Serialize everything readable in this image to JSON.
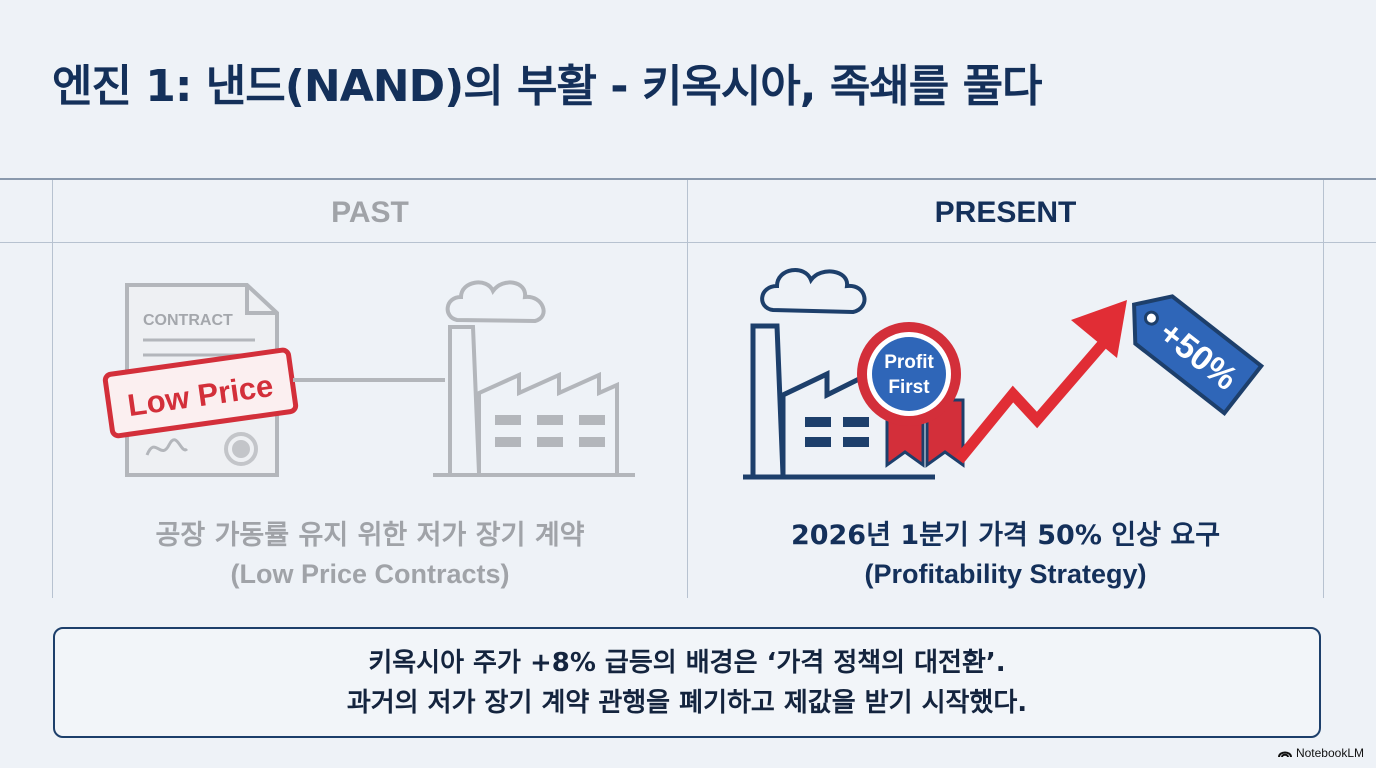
{
  "slide": {
    "title": "엔진 1: 낸드(NAND)의 부활 - 키옥시아, 족쇄를 풀다"
  },
  "columns": {
    "past": {
      "header": "PAST",
      "caption_line1": "공장 가동률 유지 위한 저가 장기 계약",
      "caption_line2": "(Low Price Contracts)",
      "illustration": {
        "document_label": "CONTRACT",
        "stamp_text": "Low Price",
        "icons": [
          "contract-document-icon",
          "seal-icon",
          "factory-icon",
          "smoke-icon"
        ]
      }
    },
    "present": {
      "header": "PRESENT",
      "caption_line1": "2026년 1분기 가격 50% 인상 요구",
      "caption_line2": "(Profitability Strategy)",
      "illustration": {
        "badge_line1": "Profit",
        "badge_line2": "First",
        "price_tag_text": "+50%",
        "icons": [
          "factory-icon",
          "ribbon-badge-icon",
          "rising-arrow-icon",
          "price-tag-icon"
        ]
      }
    }
  },
  "summary": {
    "line1": "키옥시아 주가 +8% 급등의 배경은 ‘가격 정책의 대전환’.",
    "line2": "과거의 저가 장기 계약 관행을 폐기하고 제값을 받기 시작했다."
  },
  "branding": {
    "label": "NotebookLM"
  },
  "colors": {
    "title": "#14305a",
    "past_gray": "#a0a3a8",
    "navy": "#1d3f6b",
    "accent_red": "#d32f3a",
    "accent_blue": "#2f66b8",
    "background": "#eef2f7"
  }
}
